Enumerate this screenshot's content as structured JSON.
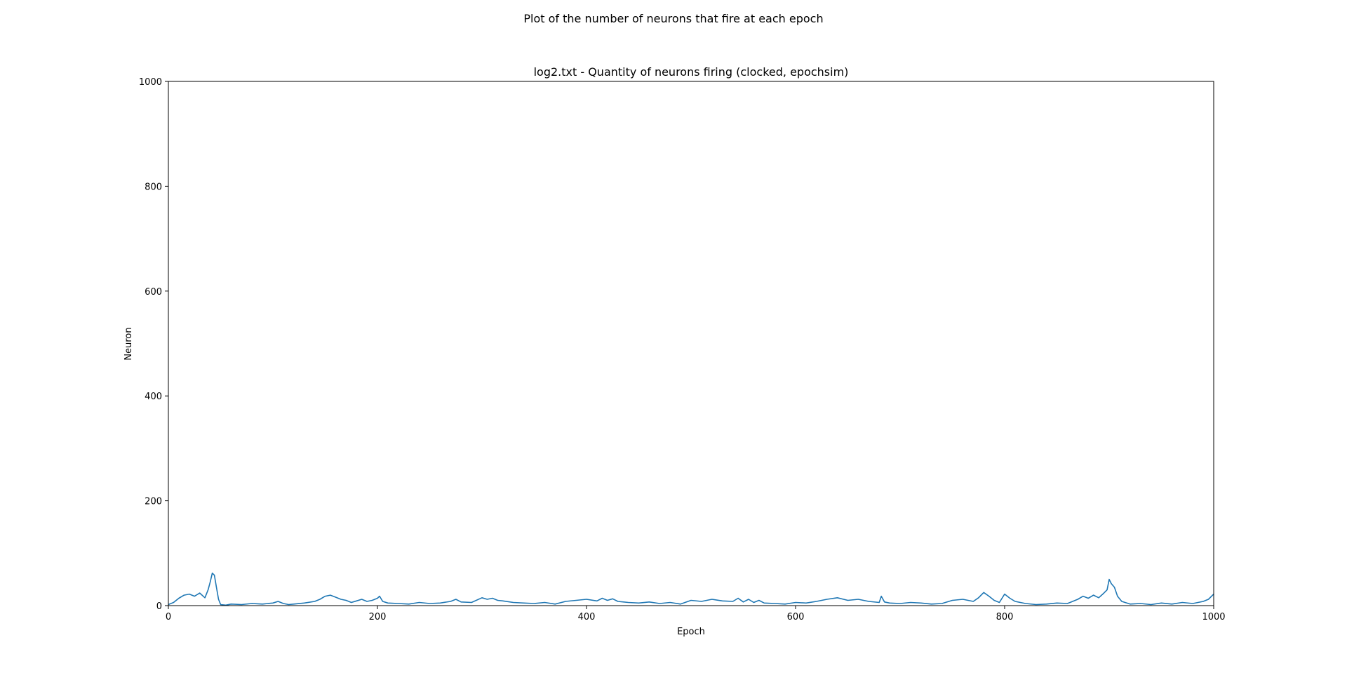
{
  "figure": {
    "suptitle": "Plot of the number of neurons that fire at each epoch"
  },
  "chart_data": {
    "type": "line",
    "title": "log2.txt - Quantity of neurons firing (clocked, epochsim)",
    "xlabel": "Epoch",
    "ylabel": "Neuron",
    "xlim": [
      0,
      1000
    ],
    "ylim": [
      0,
      1000
    ],
    "xticks": [
      "0",
      "200",
      "400",
      "600",
      "800",
      "1000"
    ],
    "yticks": [
      "0",
      "200",
      "400",
      "600",
      "800",
      "1000"
    ],
    "grid": false,
    "line_color": "#1f77b4",
    "series": [
      {
        "x": [
          0,
          5,
          10,
          15,
          20,
          25,
          30,
          35,
          38,
          40,
          42,
          44,
          46,
          48,
          50,
          55,
          60,
          70,
          80,
          90,
          100,
          105,
          110,
          115,
          120,
          130,
          140,
          145,
          150,
          155,
          160,
          165,
          170,
          175,
          180,
          185,
          190,
          195,
          200,
          202,
          205,
          210,
          220,
          230,
          240,
          250,
          260,
          270,
          275,
          280,
          290,
          300,
          305,
          310,
          315,
          320,
          330,
          340,
          350,
          360,
          370,
          380,
          390,
          400,
          410,
          415,
          420,
          425,
          430,
          440,
          450,
          460,
          470,
          480,
          490,
          500,
          510,
          520,
          530,
          540,
          545,
          550,
          555,
          560,
          565,
          570,
          580,
          590,
          600,
          610,
          620,
          630,
          640,
          650,
          660,
          670,
          680,
          682,
          685,
          690,
          700,
          710,
          720,
          730,
          740,
          750,
          760,
          770,
          775,
          780,
          785,
          790,
          795,
          800,
          805,
          810,
          820,
          830,
          840,
          850,
          860,
          870,
          875,
          880,
          885,
          890,
          895,
          898,
          900,
          902,
          905,
          908,
          912,
          920,
          930,
          940,
          950,
          960,
          970,
          980,
          990,
          995,
          1000
        ],
        "y": [
          2,
          6,
          14,
          20,
          22,
          18,
          24,
          15,
          30,
          45,
          62,
          58,
          35,
          12,
          2,
          1,
          3,
          2,
          4,
          3,
          5,
          8,
          4,
          2,
          3,
          5,
          8,
          12,
          18,
          20,
          16,
          12,
          10,
          6,
          9,
          12,
          8,
          10,
          14,
          18,
          8,
          5,
          4,
          3,
          6,
          4,
          5,
          8,
          12,
          7,
          6,
          15,
          12,
          14,
          10,
          9,
          6,
          5,
          4,
          6,
          3,
          8,
          10,
          12,
          9,
          14,
          10,
          13,
          8,
          6,
          5,
          7,
          4,
          6,
          3,
          10,
          8,
          12,
          9,
          8,
          14,
          7,
          12,
          6,
          10,
          5,
          4,
          3,
          6,
          5,
          8,
          12,
          15,
          10,
          12,
          8,
          6,
          18,
          7,
          5,
          4,
          6,
          5,
          3,
          4,
          10,
          12,
          8,
          15,
          25,
          18,
          10,
          6,
          22,
          14,
          8,
          4,
          2,
          3,
          5,
          4,
          12,
          18,
          14,
          20,
          15,
          24,
          30,
          50,
          42,
          35,
          18,
          8,
          3,
          4,
          2,
          5,
          3,
          6,
          4,
          8,
          12,
          22
        ]
      }
    ]
  }
}
